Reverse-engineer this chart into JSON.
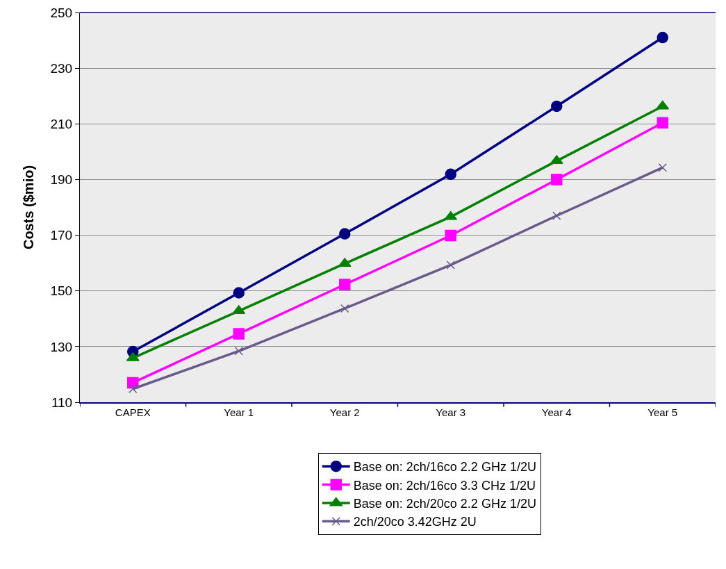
{
  "chart_data": {
    "type": "line",
    "ylabel": "Costs ($mio)",
    "categories": [
      "CAPEX",
      "Year 1",
      "Year 2",
      "Year 3",
      "Year 4",
      "Year 5"
    ],
    "series": [
      {
        "name": "Base on: 2ch/16co 2.2 GHz 1/2U",
        "color": "#000080",
        "marker": "circle",
        "values": [
          128.2,
          149.3,
          170.5,
          191.9,
          216.3,
          241
        ]
      },
      {
        "name": "Base on: 2ch/16co 3.3 CHz 1/2U",
        "color": "#ff00ff",
        "marker": "square",
        "values": [
          117,
          134.6,
          152.3,
          169.9,
          190,
          210.4
        ]
      },
      {
        "name": "Base on: 2ch/20co 2.2 GHz 1/2U",
        "color": "#008000",
        "marker": "triangle",
        "values": [
          125.9,
          142.8,
          159.8,
          176.6,
          196.7,
          216.3
        ]
      },
      {
        "name": "2ch/20co 3.42GHz 2U",
        "color": "#6a5a8c",
        "marker": "cross",
        "values": [
          114.8,
          128.4,
          143.7,
          159.3,
          177,
          194.3
        ]
      }
    ],
    "ylim": [
      110,
      250
    ],
    "yticks": [
      110,
      130,
      150,
      170,
      190,
      210,
      230,
      250
    ],
    "grid": "y",
    "legend": "bottom",
    "line_style": "solid"
  }
}
